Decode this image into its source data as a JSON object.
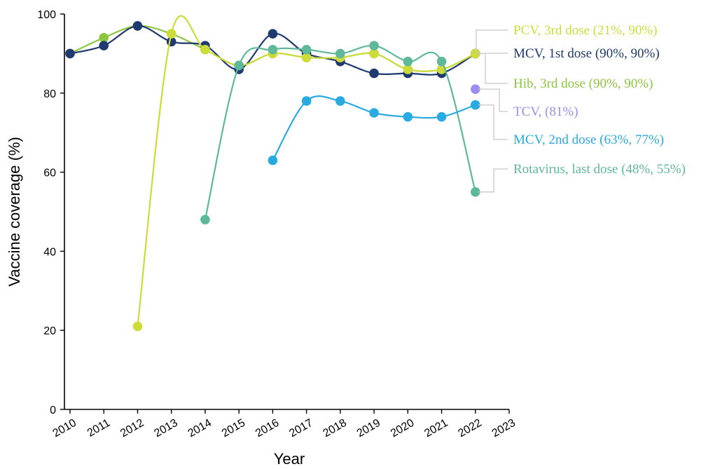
{
  "chart_data": {
    "type": "line",
    "xlabel": "Year",
    "ylabel": "Vaccine coverage (%)",
    "xlim": [
      2010,
      2023
    ],
    "ylim": [
      0,
      100
    ],
    "x_ticks": [
      "2010",
      "2011",
      "2012",
      "2013",
      "2014",
      "2015",
      "2016",
      "2017",
      "2018",
      "2019",
      "2020",
      "2021",
      "2022",
      "2023"
    ],
    "y_ticks": [
      "0",
      "20",
      "40",
      "60",
      "80",
      "100"
    ],
    "grid": false,
    "legend": "direct labels at right end of each series",
    "series": [
      {
        "name": "Hib, 3rd dose",
        "end_label": "Hib, 3rd dose (90%, 90%)",
        "color": "#8cc63f",
        "x": [
          2010,
          2011,
          2012,
          2013,
          2014,
          2015,
          2016,
          2017,
          2018,
          2019,
          2020,
          2021,
          2022
        ],
        "values": [
          90,
          94,
          97,
          95,
          91,
          87,
          90,
          89,
          89,
          90,
          86,
          86,
          90
        ]
      },
      {
        "name": "MCV, 1st dose",
        "end_label": "MCV, 1st dose (90%, 90%)",
        "color": "#1f3a6e",
        "x": [
          2010,
          2011,
          2012,
          2013,
          2014,
          2015,
          2016,
          2017,
          2018,
          2019,
          2020,
          2021,
          2022
        ],
        "values": [
          90,
          92,
          97,
          93,
          92,
          86,
          95,
          90,
          88,
          85,
          85,
          85,
          90
        ]
      },
      {
        "name": "PCV, 3rd dose",
        "end_label": "PCV, 3rd dose (21%, 90%)",
        "color": "#cddc39",
        "x": [
          2012,
          2013,
          2014,
          2015,
          2016,
          2017,
          2018,
          2019,
          2020,
          2021,
          2022
        ],
        "values": [
          21,
          95,
          91,
          87,
          90,
          89,
          89,
          90,
          86,
          86,
          90
        ]
      },
      {
        "name": "Rotavirus, last dose",
        "end_label": "Rotavirus, last dose (48%, 55%)",
        "color": "#5fb89a",
        "x": [
          2014,
          2015,
          2016,
          2017,
          2018,
          2019,
          2020,
          2021,
          2022
        ],
        "values": [
          48,
          87,
          91,
          91,
          90,
          92,
          88,
          88,
          55
        ]
      },
      {
        "name": "MCV, 2nd dose",
        "end_label": "MCV, 2nd dose (63%, 77%)",
        "color": "#29aae1",
        "x": [
          2016,
          2017,
          2018,
          2019,
          2020,
          2021,
          2022
        ],
        "values": [
          63,
          78,
          78,
          75,
          74,
          74,
          77
        ]
      },
      {
        "name": "TCV",
        "end_label": "TCV, (81%)",
        "color": "#9b8cf0",
        "x": [
          2022
        ],
        "values": [
          81
        ]
      }
    ],
    "label_order": [
      "PCV, 3rd dose",
      "MCV, 1st dose",
      "Hib, 3rd dose",
      "TCV",
      "MCV, 2nd dose",
      "Rotavirus, last dose"
    ]
  }
}
